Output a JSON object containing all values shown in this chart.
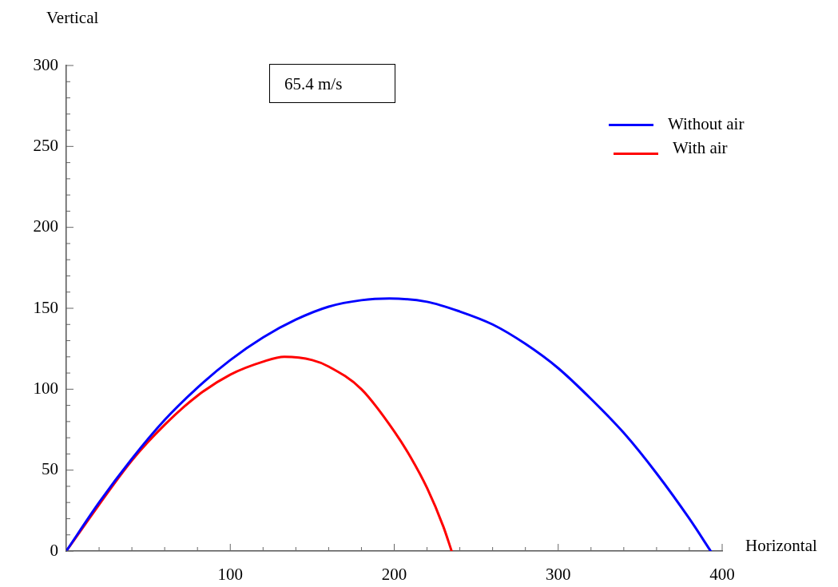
{
  "chart_data": {
    "type": "line",
    "xlabel": "Horizontal",
    "ylabel": "Vertical",
    "annotations": [
      "65.4 m/s"
    ],
    "xlim": [
      0,
      400
    ],
    "ylim": [
      0,
      300
    ],
    "xticks": [
      {
        "value": 20,
        "label": null
      },
      {
        "value": 40,
        "label": null
      },
      {
        "value": 60,
        "label": null
      },
      {
        "value": 80,
        "label": null
      },
      100,
      {
        "value": 120,
        "label": null
      },
      {
        "value": 140,
        "label": null
      },
      {
        "value": 160,
        "label": null
      },
      {
        "value": 180,
        "label": null
      },
      200,
      {
        "value": 220,
        "label": null
      },
      {
        "value": 240,
        "label": null
      },
      {
        "value": 260,
        "label": null
      },
      {
        "value": 280,
        "label": null
      },
      300,
      {
        "value": 320,
        "label": null
      },
      {
        "value": 340,
        "label": null
      },
      {
        "value": 360,
        "label": null
      },
      {
        "value": 380,
        "label": null
      },
      400
    ],
    "yticks": [
      0,
      {
        "value": 10,
        "label": null
      },
      {
        "value": 20,
        "label": null
      },
      {
        "value": 30,
        "label": null
      },
      {
        "value": 40,
        "label": null
      },
      50,
      {
        "value": 60,
        "label": null
      },
      {
        "value": 70,
        "label": null
      },
      {
        "value": 80,
        "label": null
      },
      {
        "value": 90,
        "label": null
      },
      100,
      {
        "value": 110,
        "label": null
      },
      {
        "value": 120,
        "label": null
      },
      {
        "value": 130,
        "label": null
      },
      {
        "value": 140,
        "label": null
      },
      150,
      {
        "value": 160,
        "label": null
      },
      {
        "value": 170,
        "label": null
      },
      {
        "value": 180,
        "label": null
      },
      {
        "value": 190,
        "label": null
      },
      200,
      {
        "value": 210,
        "label": null
      },
      {
        "value": 220,
        "label": null
      },
      {
        "value": 230,
        "label": null
      },
      {
        "value": 240,
        "label": null
      },
      250,
      {
        "value": 260,
        "label": null
      },
      {
        "value": 270,
        "label": null
      },
      {
        "value": 280,
        "label": null
      },
      {
        "value": 290,
        "label": null
      },
      300
    ],
    "legend": "top right",
    "marker": "none",
    "line_style": "solid",
    "series": [
      {
        "name": "Without air",
        "color": "#0000ff",
        "x": [
          0,
          20,
          40,
          60,
          80,
          100,
          120,
          140,
          160,
          180,
          197,
          220,
          240,
          260,
          280,
          300,
          320,
          340,
          360,
          380,
          393
        ],
        "values": [
          0,
          30,
          57,
          81,
          101,
          118,
          132,
          143,
          151,
          155,
          156,
          154,
          148,
          140,
          128,
          113,
          94,
          73,
          48,
          20,
          0
        ]
      },
      {
        "name": "With air",
        "color": "#ff0000",
        "x": [
          0,
          40,
          60,
          80,
          100,
          120,
          133,
          150,
          160,
          180,
          200,
          210,
          220,
          230,
          235
        ],
        "values": [
          0,
          56,
          78,
          96,
          109,
          117,
          120,
          118,
          114,
          100,
          74,
          58,
          39,
          15,
          0
        ]
      }
    ]
  }
}
